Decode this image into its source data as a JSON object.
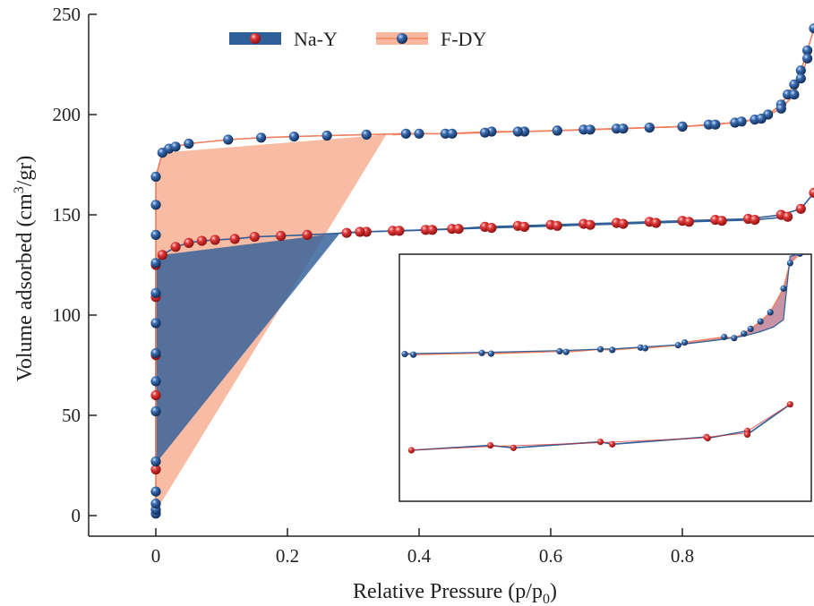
{
  "chart_data": {
    "type": "scatter",
    "xlabel": "Relative Pressure (p/p",
    "xlabel_sub": "0",
    "xlabel_end": ")",
    "ylabel": "Volume adsorbed (cm",
    "ylabel_sup": "3",
    "ylabel_end": "/gr)",
    "xlim": [
      -0.1,
      1.0
    ],
    "ylim": [
      -10,
      250
    ],
    "xticks": [
      "0",
      "0.2",
      "0.4",
      "0.6",
      "0.8"
    ],
    "xtick_values": [
      0,
      0.2,
      0.4,
      0.6,
      0.8
    ],
    "yticks": [
      "0",
      "50",
      "100",
      "150",
      "200",
      "250"
    ],
    "ytick_values": [
      0,
      50,
      100,
      150,
      200,
      250
    ],
    "legend_placement": "top-center",
    "grid": false,
    "series": [
      {
        "name": "Na-Y",
        "line_color": "#2f5f98",
        "marker_color": "#d42a2a",
        "fill_color": "#2f5f98",
        "hysteresis_fill": [
          [
            0.0,
            26
          ],
          [
            0.28,
            141
          ],
          [
            0.01,
            130
          ],
          [
            0.0,
            125
          ]
        ],
        "adsorption": [
          [
            0.0,
            23
          ],
          [
            0.0,
            60
          ],
          [
            0.0,
            80
          ],
          [
            0.0,
            109
          ],
          [
            0.0,
            125
          ],
          [
            0.01,
            130
          ],
          [
            0.03,
            134
          ],
          [
            0.05,
            136
          ],
          [
            0.07,
            137
          ],
          [
            0.09,
            137.5
          ],
          [
            0.12,
            138
          ],
          [
            0.15,
            139
          ],
          [
            0.19,
            139.5
          ],
          [
            0.23,
            140
          ],
          [
            0.29,
            141
          ],
          [
            0.32,
            141.5
          ],
          [
            0.36,
            142
          ],
          [
            0.41,
            142.5
          ],
          [
            0.45,
            143
          ],
          [
            0.5,
            144
          ],
          [
            0.55,
            144.5
          ],
          [
            0.6,
            145
          ],
          [
            0.65,
            145.5
          ],
          [
            0.7,
            146
          ],
          [
            0.75,
            146.5
          ],
          [
            0.8,
            147
          ],
          [
            0.85,
            147.5
          ],
          [
            0.9,
            148
          ],
          [
            0.95,
            150
          ],
          [
            0.98,
            153
          ],
          [
            1.0,
            161
          ]
        ],
        "desorption": [
          [
            0.28,
            141
          ],
          [
            0.31,
            141.5
          ],
          [
            0.37,
            142
          ],
          [
            0.42,
            142.5
          ],
          [
            0.46,
            143
          ],
          [
            0.51,
            143.5
          ],
          [
            0.56,
            144
          ],
          [
            0.61,
            144.5
          ],
          [
            0.66,
            145
          ],
          [
            0.71,
            145.5
          ],
          [
            0.76,
            146
          ],
          [
            0.81,
            146.5
          ],
          [
            0.86,
            147
          ],
          [
            0.91,
            147.5
          ],
          [
            0.96,
            149
          ]
        ]
      },
      {
        "name": "F-DY",
        "line_color": "#f08060",
        "marker_color": "#2a5a96",
        "fill_color": "#f8b8a0",
        "hysteresis_fill": [
          [
            0.0,
            2
          ],
          [
            0.35,
            190
          ],
          [
            0.01,
            181
          ],
          [
            0.0,
            170
          ]
        ],
        "adsorption": [
          [
            0.0,
            1
          ],
          [
            0.0,
            3
          ],
          [
            0.0,
            6
          ],
          [
            0.0,
            12
          ],
          [
            0.0,
            27
          ],
          [
            0.0,
            52
          ],
          [
            0.0,
            67
          ],
          [
            0.0,
            81
          ],
          [
            0.0,
            96
          ],
          [
            0.0,
            111
          ],
          [
            0.0,
            126
          ],
          [
            0.0,
            140
          ],
          [
            0.0,
            155
          ],
          [
            0.0,
            169
          ],
          [
            0.01,
            181
          ],
          [
            0.02,
            183
          ],
          [
            0.03,
            184
          ],
          [
            0.05,
            185.5
          ],
          [
            0.11,
            187.5
          ],
          [
            0.16,
            188.5
          ],
          [
            0.21,
            189
          ],
          [
            0.26,
            189.5
          ],
          [
            0.32,
            190
          ],
          [
            0.38,
            190.5
          ],
          [
            0.44,
            190.5
          ],
          [
            0.51,
            191.5
          ],
          [
            0.56,
            191.5
          ],
          [
            0.61,
            192
          ],
          [
            0.65,
            192.5
          ],
          [
            0.7,
            193
          ],
          [
            0.75,
            193.5
          ],
          [
            0.8,
            194
          ],
          [
            0.84,
            195
          ],
          [
            0.88,
            196
          ],
          [
            0.91,
            197.5
          ],
          [
            0.93,
            200
          ],
          [
            0.95,
            205
          ],
          [
            0.96,
            210
          ],
          [
            0.97,
            215
          ],
          [
            0.98,
            222
          ],
          [
            0.99,
            232
          ],
          [
            1.0,
            243
          ]
        ],
        "desorption": [
          [
            0.36,
            190
          ],
          [
            0.4,
            190.5
          ],
          [
            0.45,
            190.5
          ],
          [
            0.5,
            191
          ],
          [
            0.55,
            191.5
          ],
          [
            0.61,
            192
          ],
          [
            0.66,
            192.5
          ],
          [
            0.71,
            193
          ],
          [
            0.75,
            193.5
          ],
          [
            0.8,
            194
          ],
          [
            0.85,
            195
          ],
          [
            0.89,
            196.5
          ],
          [
            0.92,
            198
          ],
          [
            0.95,
            203
          ],
          [
            0.97,
            210
          ],
          [
            0.98,
            218
          ],
          [
            0.99,
            228
          ]
        ]
      }
    ],
    "inset": {
      "xlim": [
        0.375,
        0.98
      ],
      "naY_ylim": [
        142,
        152
      ],
      "fdy_ylim": [
        189,
        222
      ],
      "naY": {
        "adsorption": [
          [
            0.385,
            142.0
          ],
          [
            0.505,
            142.4
          ],
          [
            0.54,
            142.2
          ],
          [
            0.672,
            142.7
          ],
          [
            0.69,
            142.5
          ],
          [
            0.833,
            143.1
          ],
          [
            0.835,
            143.0
          ],
          [
            0.895,
            143.6
          ],
          [
            0.895,
            143.3
          ],
          [
            0.96,
            145.8
          ]
        ],
        "desorption": [
          [
            0.38,
            142.0
          ],
          [
            0.5,
            142.3
          ],
          [
            0.66,
            142.6
          ],
          [
            0.82,
            143.0
          ],
          [
            0.89,
            143.4
          ],
          [
            0.96,
            145.8
          ]
        ]
      },
      "fdy": {
        "adsorption": [
          [
            0.375,
            190.2
          ],
          [
            0.388,
            190.0
          ],
          [
            0.492,
            190.5
          ],
          [
            0.506,
            190.3
          ],
          [
            0.61,
            191.0
          ],
          [
            0.62,
            190.8
          ],
          [
            0.672,
            191.6
          ],
          [
            0.69,
            191.4
          ],
          [
            0.733,
            192.1
          ],
          [
            0.74,
            191.9
          ],
          [
            0.79,
            192.8
          ],
          [
            0.8,
            193.6
          ],
          [
            0.86,
            195.2
          ],
          [
            0.875,
            194.9
          ],
          [
            0.89,
            196.2
          ],
          [
            0.9,
            197.6
          ],
          [
            0.915,
            199.8
          ],
          [
            0.93,
            202.5
          ],
          [
            0.95,
            209.5
          ],
          [
            0.96,
            217.0
          ],
          [
            0.975,
            219.8
          ]
        ],
        "desorption": [
          [
            0.375,
            190.3
          ],
          [
            0.5,
            190.7
          ],
          [
            0.61,
            191.2
          ],
          [
            0.7,
            191.8
          ],
          [
            0.79,
            192.9
          ],
          [
            0.85,
            194.3
          ],
          [
            0.89,
            195.5
          ],
          [
            0.915,
            196.8
          ],
          [
            0.935,
            198.2
          ],
          [
            0.95,
            200.3
          ],
          [
            0.96,
            219.0
          ],
          [
            0.975,
            219.8
          ]
        ]
      }
    }
  }
}
